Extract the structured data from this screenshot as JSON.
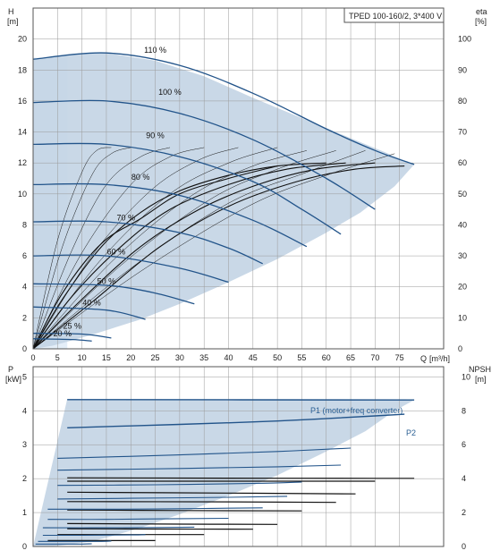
{
  "colors": {
    "envelope": "#c3d4e4",
    "envelope_light": "#e4eef8",
    "speed_curve": "#22548a",
    "efficiency_curve": "#111111",
    "grid": "#9a9a9a",
    "axis_text": "#222222",
    "label_blue": "#2a5f93"
  },
  "chart_data": [
    {
      "type": "line",
      "title": "TPED 100-160/2, 3*400 V",
      "ylabel": "H",
      "yunit": "[m]",
      "xlabel": "Q",
      "xunit": "[m³/h]",
      "xlim": [
        0,
        80
      ],
      "ylim": [
        0,
        22
      ],
      "xticks": [
        0,
        5,
        10,
        15,
        20,
        25,
        30,
        35,
        40,
        45,
        50,
        55,
        60,
        65,
        70,
        75
      ],
      "yticks": [
        0,
        2,
        4,
        6,
        8,
        10,
        12,
        14,
        16,
        18,
        20
      ],
      "y2label": "eta",
      "y2unit": "[%]",
      "y2lim": [
        0,
        110
      ],
      "y2ticks": [
        0,
        10,
        20,
        30,
        40,
        50,
        60,
        70,
        80,
        90,
        100
      ],
      "grid": true,
      "envelope": {
        "x": [
          0,
          3,
          7,
          15,
          25,
          35,
          45,
          55,
          65,
          72,
          78,
          74,
          67,
          60,
          50,
          40,
          30,
          22,
          16,
          12,
          8,
          4,
          0
        ],
        "y": [
          18.7,
          18.8,
          19.0,
          19.1,
          18.6,
          17.6,
          16.2,
          14.9,
          13.6,
          12.7,
          11.9,
          10.5,
          8.8,
          7.5,
          5.8,
          4.3,
          2.9,
          1.9,
          1.3,
          0.9,
          0.55,
          0.2,
          0
        ]
      },
      "speed_labels": [
        "110 %",
        "100 %",
        "90 %",
        "80 %",
        "70 %",
        "60 %",
        "50 %",
        "40 %",
        "25 %",
        "20 %"
      ],
      "speed_curves": [
        {
          "label": "110 %",
          "Q": [
            0,
            15,
            30,
            45,
            60,
            70,
            78
          ],
          "H": [
            18.7,
            19.1,
            18.3,
            16.5,
            14.2,
            12.8,
            11.9
          ]
        },
        {
          "label": "100 %",
          "Q": [
            0,
            15,
            30,
            45,
            60,
            70
          ],
          "H": [
            15.9,
            16.0,
            15.2,
            13.5,
            11.0,
            9.0
          ]
        },
        {
          "label": "90 %",
          "Q": [
            0,
            15,
            30,
            45,
            55,
            63
          ],
          "H": [
            13.2,
            13.2,
            12.4,
            10.8,
            9.0,
            7.4
          ]
        },
        {
          "label": "80 %",
          "Q": [
            0,
            15,
            30,
            45,
            56
          ],
          "H": [
            10.6,
            10.6,
            9.9,
            8.3,
            6.6
          ]
        },
        {
          "label": "70 %",
          "Q": [
            0,
            15,
            30,
            40,
            47
          ],
          "H": [
            8.2,
            8.2,
            7.5,
            6.5,
            5.5
          ]
        },
        {
          "label": "60 %",
          "Q": [
            0,
            15,
            30,
            40
          ],
          "H": [
            6.0,
            6.0,
            5.2,
            4.3
          ]
        },
        {
          "label": "50 %",
          "Q": [
            0,
            15,
            25,
            33
          ],
          "H": [
            4.2,
            4.1,
            3.6,
            2.9
          ]
        },
        {
          "label": "40 %",
          "Q": [
            0,
            15,
            23
          ],
          "H": [
            2.7,
            2.5,
            1.9
          ]
        },
        {
          "label": "25 %",
          "Q": [
            0,
            10,
            16
          ],
          "H": [
            1.0,
            0.95,
            0.7
          ]
        },
        {
          "label": "20 %",
          "Q": [
            0,
            8,
            12
          ],
          "H": [
            0.65,
            0.6,
            0.5
          ]
        }
      ],
      "efficiency_curves": [
        {
          "Q": [
            0,
            5,
            10,
            13,
            16
          ],
          "eta": [
            0,
            35,
            57,
            64,
            65
          ]
        },
        {
          "Q": [
            0,
            6,
            12,
            16,
            20
          ],
          "eta": [
            0,
            33,
            56,
            63,
            65
          ]
        },
        {
          "Q": [
            0,
            8,
            15,
            22,
            28
          ],
          "eta": [
            0,
            32,
            53,
            62,
            65
          ]
        },
        {
          "Q": [
            0,
            10,
            20,
            28,
            35
          ],
          "eta": [
            0,
            31,
            53,
            62,
            65
          ]
        },
        {
          "Q": [
            0,
            12,
            24,
            34,
            42
          ],
          "eta": [
            0,
            30,
            51,
            61,
            65
          ]
        },
        {
          "Q": [
            0,
            14,
            28,
            40,
            50
          ],
          "eta": [
            0,
            29,
            50,
            60,
            65
          ]
        },
        {
          "Q": [
            0,
            16,
            32,
            45,
            56
          ],
          "eta": [
            0,
            28,
            49,
            59,
            64
          ]
        },
        {
          "Q": [
            0,
            18,
            36,
            50,
            62
          ],
          "eta": [
            0,
            27,
            48,
            58,
            64
          ]
        },
        {
          "Q": [
            0,
            20,
            40,
            56,
            68
          ],
          "eta": [
            0,
            26,
            47,
            57,
            64
          ]
        },
        {
          "Q": [
            0,
            22,
            44,
            60,
            74
          ],
          "eta": [
            0,
            25,
            46,
            56,
            63
          ]
        },
        {
          "Q": [
            0,
            6,
            14,
            22,
            30,
            40,
            50
          ],
          "eta": [
            0,
            18,
            34,
            42,
            50,
            55,
            59
          ]
        },
        {
          "Q": [
            0,
            6,
            14,
            22,
            30,
            40,
            50,
            60
          ],
          "eta": [
            0,
            16,
            33,
            44,
            51,
            56,
            59,
            60
          ]
        },
        {
          "Q": [
            0,
            8,
            18,
            28,
            40,
            52,
            64
          ],
          "eta": [
            0,
            17,
            33,
            45,
            53,
            58,
            60
          ]
        },
        {
          "Q": [
            0,
            10,
            22,
            34,
            46,
            58,
            70
          ],
          "eta": [
            0,
            16,
            33,
            45,
            53,
            58,
            60
          ]
        },
        {
          "Q": [
            0,
            12,
            26,
            40,
            54,
            66,
            76
          ],
          "eta": [
            0,
            15,
            33,
            46,
            54,
            58,
            59
          ]
        }
      ]
    },
    {
      "type": "line",
      "ylabel": "P",
      "yunit": "[kW]",
      "xlim": [
        0,
        80
      ],
      "ylim": [
        0,
        5.3
      ],
      "yticks": [
        0,
        1,
        2,
        3,
        4,
        5
      ],
      "y2label": "NPSH",
      "y2unit": "[m]",
      "y2lim": [
        0,
        10.6
      ],
      "y2ticks": [
        0,
        2,
        4,
        6,
        8,
        10
      ],
      "grid": true,
      "envelope": {
        "x": [
          7,
          78,
          74,
          68,
          60,
          50,
          40,
          30,
          22,
          16,
          12,
          8,
          5,
          2,
          0,
          7
        ],
        "y": [
          4.35,
          4.32,
          4.0,
          3.4,
          2.8,
          2.1,
          1.5,
          0.95,
          0.55,
          0.3,
          0.15,
          0.07,
          0.02,
          0,
          0,
          4.35
        ]
      },
      "series": [
        {
          "name": "P1 (motor+freq converter)",
          "Q": [
            7,
            78
          ],
          "P": [
            4.33,
            4.32
          ]
        },
        {
          "name": "P2",
          "Q": [
            7,
            30,
            50,
            70,
            76
          ],
          "P": [
            3.5,
            3.6,
            3.7,
            3.85,
            3.9
          ]
        }
      ],
      "power_curves": [
        {
          "Q": [
            5,
            30,
            50,
            65
          ],
          "P": [
            2.6,
            2.7,
            2.8,
            2.9
          ]
        },
        {
          "Q": [
            5,
            30,
            50,
            63
          ],
          "P": [
            2.25,
            2.3,
            2.35,
            2.4
          ]
        },
        {
          "Q": [
            5,
            25,
            45,
            55
          ],
          "P": [
            1.8,
            1.82,
            1.86,
            1.9
          ]
        },
        {
          "Q": [
            5,
            20,
            40,
            52
          ],
          "P": [
            1.4,
            1.42,
            1.45,
            1.48
          ]
        },
        {
          "Q": [
            3,
            18,
            35,
            47
          ],
          "P": [
            1.1,
            1.1,
            1.12,
            1.14
          ]
        },
        {
          "Q": [
            3,
            15,
            30,
            40
          ],
          "P": [
            0.8,
            0.8,
            0.82,
            0.83
          ]
        },
        {
          "Q": [
            2,
            12,
            25,
            33
          ],
          "P": [
            0.55,
            0.55,
            0.56,
            0.57
          ]
        },
        {
          "Q": [
            2,
            10,
            20,
            23
          ],
          "P": [
            0.33,
            0.33,
            0.34,
            0.35
          ]
        },
        {
          "Q": [
            1,
            8,
            14,
            16
          ],
          "P": [
            0.15,
            0.15,
            0.15,
            0.16
          ]
        },
        {
          "Q": [
            0.5,
            6,
            10,
            12
          ],
          "P": [
            0.07,
            0.07,
            0.07,
            0.08
          ]
        }
      ],
      "npsh_curves": [
        {
          "Q": [
            7,
            40,
            70,
            78
          ],
          "NPSH": [
            4.05,
            4.03,
            4.02,
            4.02
          ]
        },
        {
          "Q": [
            7,
            40,
            70
          ],
          "NPSH": [
            3.85,
            3.85,
            3.85
          ]
        },
        {
          "Q": [
            7,
            40,
            66
          ],
          "NPSH": [
            3.2,
            3.15,
            3.1
          ]
        },
        {
          "Q": [
            7,
            40,
            62
          ],
          "NPSH": [
            2.65,
            2.63,
            2.6
          ]
        },
        {
          "Q": [
            7,
            30,
            55
          ],
          "NPSH": [
            2.15,
            2.12,
            2.1
          ]
        },
        {
          "Q": [
            7,
            30,
            50
          ],
          "NPSH": [
            1.35,
            1.32,
            1.3
          ]
        },
        {
          "Q": [
            7,
            25,
            45
          ],
          "NPSH": [
            1.05,
            1.03,
            1.02
          ]
        },
        {
          "Q": [
            5,
            20,
            35
          ],
          "NPSH": [
            0.7,
            0.7,
            0.7
          ]
        },
        {
          "Q": [
            3,
            15,
            25
          ],
          "NPSH": [
            0.35,
            0.35,
            0.35
          ]
        }
      ]
    }
  ]
}
